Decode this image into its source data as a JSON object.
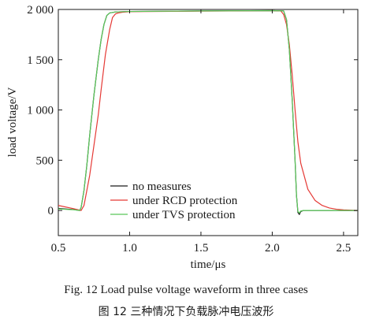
{
  "chart_data": {
    "type": "line",
    "xlabel": "time/μs",
    "ylabel": "load voltage/V",
    "xlim": [
      0.5,
      2.6
    ],
    "ylim": [
      -250,
      2000
    ],
    "xticks": [
      0.5,
      1.0,
      1.5,
      2.0,
      2.5
    ],
    "xtick_labels": [
      "0.5",
      "1.0",
      "1.5",
      "2.0",
      "2.5"
    ],
    "yticks": [
      0,
      500,
      1000,
      1500,
      2000
    ],
    "ytick_labels": [
      "0",
      "500",
      "1 000",
      "1 500",
      "2 000"
    ],
    "grid": false,
    "legend_position": "bottom-center",
    "series": [
      {
        "name": "no measures",
        "color": "#1a1a1a",
        "x": [
          0.5,
          0.6,
          0.65,
          0.66,
          0.68,
          0.7,
          0.72,
          0.75,
          0.78,
          0.8,
          0.82,
          0.84,
          0.86,
          0.9,
          1.0,
          1.5,
          2.0,
          2.08,
          2.1,
          2.12,
          2.14,
          2.16,
          2.17,
          2.18,
          2.19,
          2.2,
          2.22,
          2.3,
          2.6
        ],
        "y": [
          20,
          10,
          0,
          30,
          200,
          450,
          750,
          1150,
          1500,
          1700,
          1850,
          1940,
          1965,
          1975,
          1980,
          1985,
          1988,
          1985,
          1900,
          1600,
          1100,
          500,
          150,
          -20,
          -40,
          -10,
          0,
          0,
          0
        ]
      },
      {
        "name": "under RCD protection",
        "color": "#e53935",
        "x": [
          0.5,
          0.6,
          0.66,
          0.68,
          0.7,
          0.72,
          0.75,
          0.78,
          0.8,
          0.83,
          0.86,
          0.88,
          0.9,
          0.92,
          0.95,
          1.0,
          1.5,
          2.0,
          2.06,
          2.08,
          2.1,
          2.12,
          2.14,
          2.16,
          2.18,
          2.2,
          2.25,
          2.3,
          2.35,
          2.4,
          2.45,
          2.5,
          2.6
        ],
        "y": [
          50,
          20,
          0,
          50,
          200,
          350,
          650,
          950,
          1200,
          1550,
          1800,
          1920,
          1955,
          1965,
          1972,
          1978,
          1983,
          1988,
          1985,
          1950,
          1850,
          1650,
          1350,
          1000,
          680,
          470,
          210,
          100,
          50,
          25,
          12,
          6,
          0
        ]
      },
      {
        "name": "under TVS protection",
        "color": "#5ac85a",
        "x": [
          0.5,
          0.6,
          0.65,
          0.66,
          0.68,
          0.7,
          0.72,
          0.75,
          0.78,
          0.8,
          0.82,
          0.84,
          0.86,
          0.9,
          1.0,
          1.5,
          2.0,
          2.08,
          2.1,
          2.12,
          2.14,
          2.16,
          2.17,
          2.18,
          2.19,
          2.2,
          2.22,
          2.3,
          2.6
        ],
        "y": [
          15,
          8,
          0,
          30,
          200,
          450,
          750,
          1150,
          1500,
          1700,
          1850,
          1940,
          1965,
          1975,
          1980,
          1985,
          1988,
          1985,
          1900,
          1600,
          1100,
          500,
          150,
          -10,
          -25,
          -5,
          0,
          0,
          0
        ]
      }
    ]
  },
  "caption_en": "Fig. 12    Load pulse voltage waveform in three cases",
  "caption_cn": "图 12    三种情况下负载脉冲电压波形"
}
